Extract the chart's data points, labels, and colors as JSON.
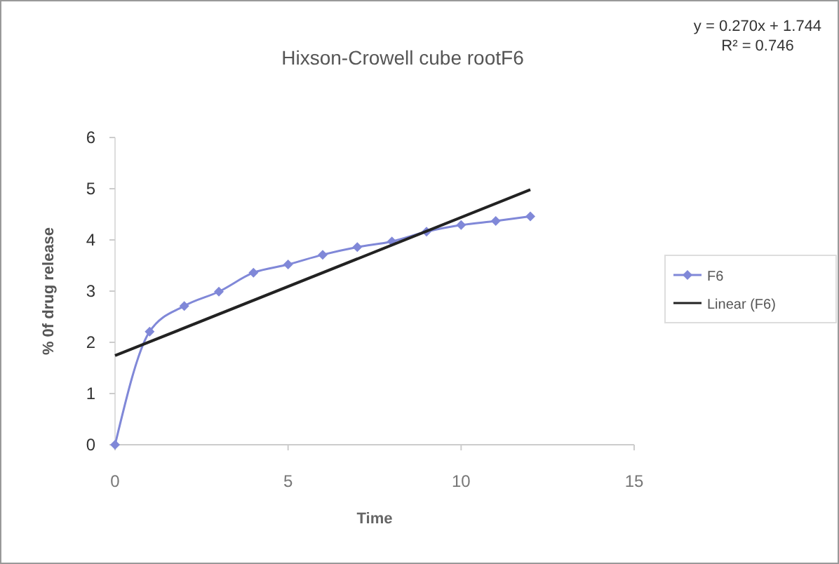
{
  "chart_data": {
    "type": "line",
    "title": "Hixson-Crowell cube rootF6",
    "xlabel": "Time",
    "ylabel": "% 0f drug release",
    "annotations": [
      "y = 0.270x + 1.744",
      "R² = 0.746"
    ],
    "xlim": [
      0,
      15
    ],
    "xticks": [
      0,
      5,
      10,
      15
    ],
    "ylim": [
      0,
      6
    ],
    "yticks": [
      0,
      1,
      2,
      3,
      4,
      5,
      6
    ],
    "grid": false,
    "legend": "right",
    "series": [
      {
        "name": "F6",
        "color": "#8088d8",
        "marker": "diamond",
        "x": [
          0,
          1,
          2,
          3,
          4,
          5,
          6,
          7,
          8,
          9,
          10,
          11,
          12
        ],
        "values": [
          0,
          2.21,
          2.71,
          2.99,
          3.36,
          3.52,
          3.71,
          3.86,
          3.97,
          4.16,
          4.29,
          4.37,
          4.46
        ]
      },
      {
        "name": "Linear (F6)",
        "color": "#222222",
        "marker": "none",
        "x": [
          0,
          12
        ],
        "values": [
          1.74,
          4.98
        ]
      }
    ]
  }
}
